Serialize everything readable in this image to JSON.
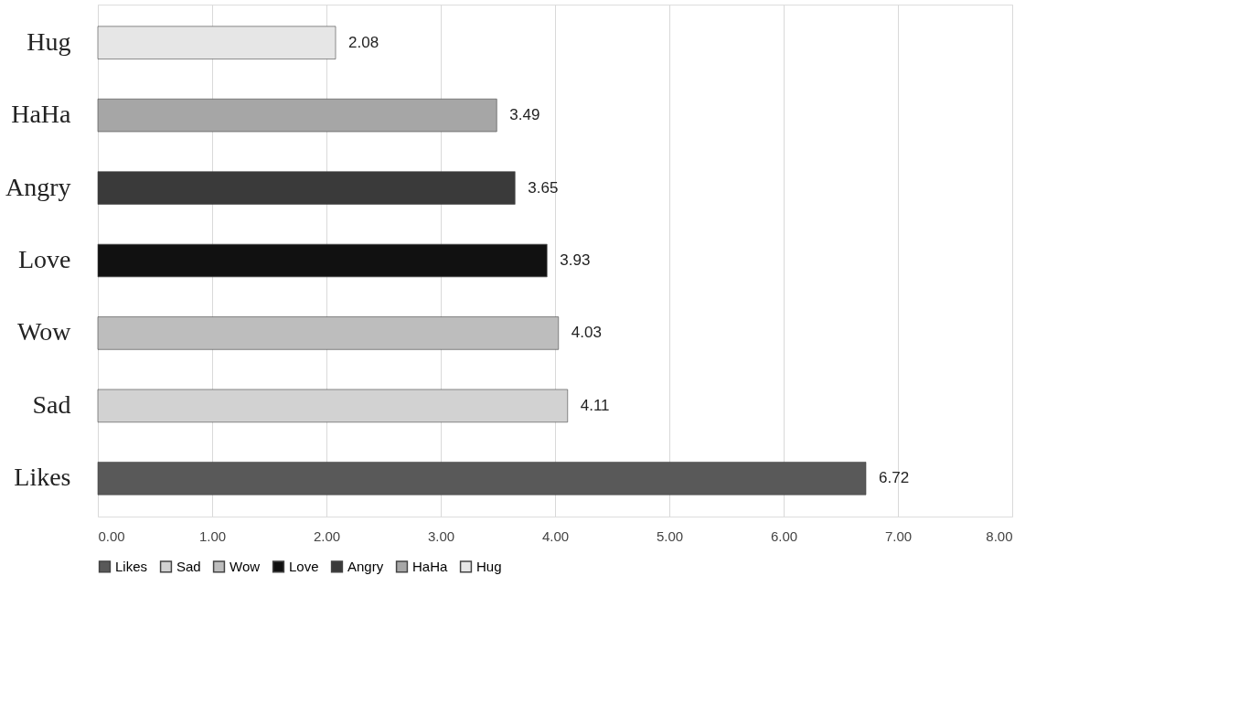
{
  "chart_data": {
    "type": "bar",
    "orientation": "horizontal",
    "categories": [
      "Hug",
      "HaHa",
      "Angry",
      "Love",
      "Wow",
      "Sad",
      "Likes"
    ],
    "series": [
      {
        "name": "Likes",
        "color": "#595959",
        "values": [
          null,
          null,
          null,
          null,
          null,
          null,
          6.72
        ]
      },
      {
        "name": "Sad",
        "color": "#d2d2d2",
        "values": [
          null,
          null,
          null,
          null,
          null,
          4.11,
          null
        ]
      },
      {
        "name": "Wow",
        "color": "#bdbdbd",
        "values": [
          null,
          null,
          null,
          null,
          4.03,
          null,
          null
        ]
      },
      {
        "name": "Love",
        "color": "#111111",
        "values": [
          null,
          null,
          null,
          3.93,
          null,
          null,
          null
        ]
      },
      {
        "name": "Angry",
        "color": "#3a3a3a",
        "values": [
          null,
          null,
          3.65,
          null,
          null,
          null,
          null
        ]
      },
      {
        "name": "HaHa",
        "color": "#a6a6a6",
        "values": [
          null,
          3.49,
          null,
          null,
          null,
          null,
          null
        ]
      },
      {
        "name": "Hug",
        "color": "#e6e6e6",
        "values": [
          2.08,
          null,
          null,
          null,
          null,
          null,
          null
        ]
      }
    ],
    "xlim": [
      0,
      8
    ],
    "xticks": [
      {
        "value": 0,
        "label": "0.00"
      },
      {
        "value": 1,
        "label": "1.00"
      },
      {
        "value": 2,
        "label": "2.00"
      },
      {
        "value": 3,
        "label": "3.00"
      },
      {
        "value": 4,
        "label": "4.00"
      },
      {
        "value": 5,
        "label": "5.00"
      },
      {
        "value": 6,
        "label": "6.00"
      },
      {
        "value": 7,
        "label": "7.00"
      },
      {
        "value": 8,
        "label": "8.00"
      }
    ],
    "grid": "x",
    "legend": "bottom",
    "data_labels": true
  }
}
